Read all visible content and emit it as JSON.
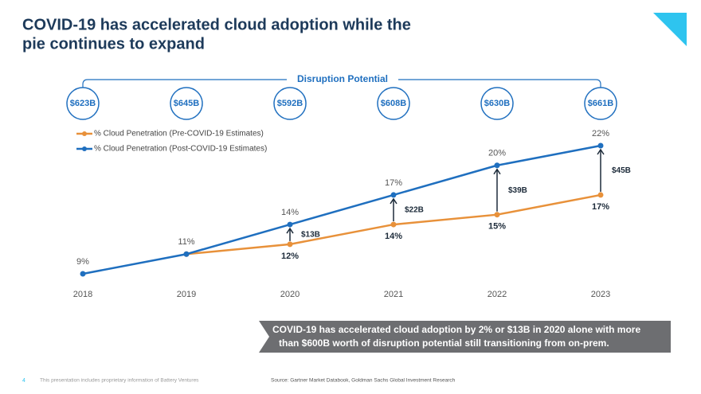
{
  "title": [
    "COVID-19 has accelerated cloud adoption while the",
    "pie continues to expand"
  ],
  "chart_data": {
    "type": "line",
    "categories": [
      "2018",
      "2019",
      "2020",
      "2021",
      "2022",
      "2023"
    ],
    "series": [
      {
        "name": "% Cloud Penetration (Pre-COVID-19 Estimates)",
        "color": "#e8913a",
        "values": [
          null,
          11,
          12,
          14,
          15,
          17
        ],
        "value_labels": [
          null,
          null,
          "12%",
          "14%",
          "15%",
          "17%"
        ]
      },
      {
        "name": "% Cloud Penetration (Post-COVID-19 Estimates)",
        "color": "#1f6fbf",
        "values": [
          9,
          11,
          14,
          17,
          20,
          22
        ],
        "value_labels": [
          "9%",
          "11%",
          "14%",
          "17%",
          "20%",
          "22%"
        ]
      }
    ],
    "gap_labels": [
      null,
      null,
      "$13B",
      "$22B",
      "$39B",
      "$45B"
    ],
    "disruption_label": "Disruption Potential",
    "disruption_values": [
      "$623B",
      "$645B",
      "$592B",
      "$608B",
      "$630B",
      "$661B"
    ]
  },
  "callout": [
    "COVID-19 has accelerated cloud adoption by 2% or $13B in 2020 alone with more",
    "than $600B worth of disruption potential still transitioning from on-prem."
  ],
  "footer": {
    "page": "4",
    "note": "This presentation includes proprietary information of Battery Ventures",
    "source": "Source: Gartner Market Databook, Goldman Sachs Global Investment Research"
  }
}
